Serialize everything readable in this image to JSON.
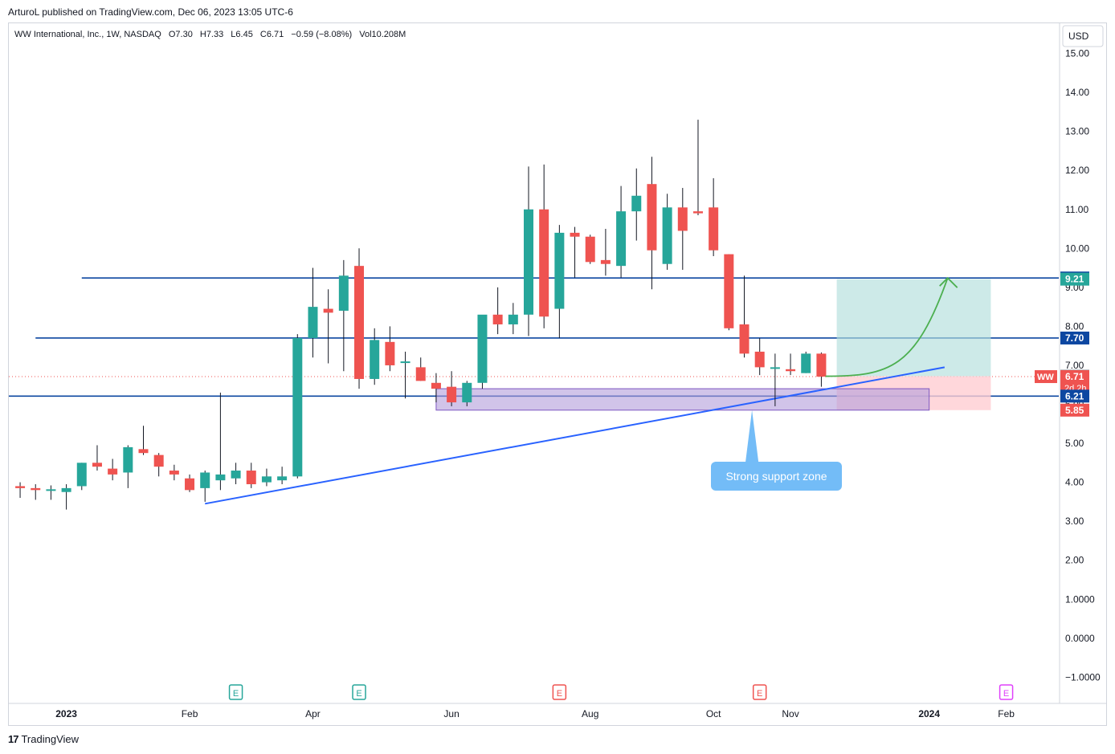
{
  "publisher_line": "ArturoL published on TradingView.com, Dec 06, 2023 13:05 UTC-6",
  "legend": {
    "symbol": "WW International, Inc., 1W, NASDAQ",
    "open": "O7.30",
    "high": "H7.33",
    "low": "L6.45",
    "close": "C6.71",
    "change": "−0.59 (−8.08%)",
    "volume": "Vol10.208M"
  },
  "currency_button": "USD",
  "footer_brand": "TradingView",
  "annotation_text": "Strong support zone",
  "colors": {
    "up": "#26a69a",
    "down": "#ef5350",
    "hline": "#0d47a1",
    "trendline": "#2962ff",
    "zone_fill": "#b39ddb",
    "zone_stroke": "#7e57c2",
    "target_fill": "#b2dfdb",
    "stop_fill": "#ffcdd2",
    "callout": "#64b5f6",
    "arrow": "#4caf50",
    "earnings_green": "#26a69a",
    "earnings_red": "#ef5350",
    "earnings_magenta": "#e040fb"
  },
  "chart_data": {
    "type": "candlestick",
    "timeframe": "1W",
    "symbol": "WW",
    "ylim": [
      -1.3,
      15.6
    ],
    "y_ticks": [
      "15.00",
      "14.00",
      "13.00",
      "12.00",
      "11.00",
      "10.00",
      "9.00",
      "8.00",
      "7.00",
      "6.00",
      "5.00",
      "4.00",
      "3.00",
      "2.00",
      "1.0000",
      "0.0000",
      "−1.0000"
    ],
    "y_tick_values": [
      15,
      14,
      13,
      12,
      11,
      10,
      9,
      8,
      7,
      6,
      5,
      4,
      3,
      2,
      1,
      0,
      -1
    ],
    "x_ticks": [
      {
        "label": "2023",
        "week": 1
      },
      {
        "label": "Feb",
        "week": 9
      },
      {
        "label": "Apr",
        "week": 17
      },
      {
        "label": "Jun",
        "week": 26
      },
      {
        "label": "Aug",
        "week": 35
      },
      {
        "label": "Oct",
        "week": 43
      },
      {
        "label": "Nov",
        "week": 48
      },
      {
        "label": "2024",
        "week": 57
      },
      {
        "label": "Feb",
        "week": 62
      }
    ],
    "candles": [
      {
        "w": -2,
        "o": 3.9,
        "h": 4.0,
        "l": 3.6,
        "c": 3.85
      },
      {
        "w": -1,
        "o": 3.85,
        "h": 3.95,
        "l": 3.55,
        "c": 3.8
      },
      {
        "w": 0,
        "o": 3.8,
        "h": 3.92,
        "l": 3.55,
        "c": 3.82
      },
      {
        "w": 1,
        "o": 3.75,
        "h": 3.95,
        "l": 3.3,
        "c": 3.85
      },
      {
        "w": 2,
        "o": 3.9,
        "h": 4.5,
        "l": 3.8,
        "c": 4.5
      },
      {
        "w": 3,
        "o": 4.5,
        "h": 4.95,
        "l": 4.3,
        "c": 4.4
      },
      {
        "w": 4,
        "o": 4.35,
        "h": 4.6,
        "l": 4.05,
        "c": 4.2
      },
      {
        "w": 5,
        "o": 4.25,
        "h": 4.95,
        "l": 3.85,
        "c": 4.9
      },
      {
        "w": 6,
        "o": 4.85,
        "h": 5.45,
        "l": 4.7,
        "c": 4.75
      },
      {
        "w": 7,
        "o": 4.7,
        "h": 4.75,
        "l": 4.15,
        "c": 4.4
      },
      {
        "w": 8,
        "o": 4.3,
        "h": 4.45,
        "l": 4.05,
        "c": 4.2
      },
      {
        "w": 9,
        "o": 4.1,
        "h": 4.2,
        "l": 3.75,
        "c": 3.8
      },
      {
        "w": 10,
        "o": 3.85,
        "h": 4.3,
        "l": 3.5,
        "c": 4.25
      },
      {
        "w": 11,
        "o": 4.05,
        "h": 6.3,
        "l": 3.8,
        "c": 4.2
      },
      {
        "w": 12,
        "o": 4.1,
        "h": 4.5,
        "l": 3.95,
        "c": 4.3
      },
      {
        "w": 13,
        "o": 4.3,
        "h": 4.5,
        "l": 3.85,
        "c": 3.95
      },
      {
        "w": 14,
        "o": 4.0,
        "h": 4.35,
        "l": 3.9,
        "c": 4.15
      },
      {
        "w": 15,
        "o": 4.05,
        "h": 4.4,
        "l": 3.95,
        "c": 4.15
      },
      {
        "w": 16,
        "o": 4.15,
        "h": 7.8,
        "l": 4.1,
        "c": 7.7
      },
      {
        "w": 17,
        "o": 7.7,
        "h": 9.5,
        "l": 7.2,
        "c": 8.5
      },
      {
        "w": 18,
        "o": 8.45,
        "h": 8.95,
        "l": 7.05,
        "c": 8.35
      },
      {
        "w": 19,
        "o": 8.4,
        "h": 9.7,
        "l": 6.85,
        "c": 9.3
      },
      {
        "w": 20,
        "o": 9.55,
        "h": 10.0,
        "l": 6.4,
        "c": 6.65
      },
      {
        "w": 21,
        "o": 6.65,
        "h": 7.95,
        "l": 6.5,
        "c": 7.65
      },
      {
        "w": 22,
        "o": 7.6,
        "h": 8.0,
        "l": 6.85,
        "c": 7.0
      },
      {
        "w": 23,
        "o": 7.1,
        "h": 7.35,
        "l": 6.15,
        "c": 7.1
      },
      {
        "w": 24,
        "o": 6.95,
        "h": 7.2,
        "l": 6.6,
        "c": 6.6
      },
      {
        "w": 25,
        "o": 6.55,
        "h": 6.8,
        "l": 6.05,
        "c": 6.4
      },
      {
        "w": 26,
        "o": 6.45,
        "h": 6.85,
        "l": 5.95,
        "c": 6.05
      },
      {
        "w": 27,
        "o": 6.05,
        "h": 6.6,
        "l": 5.95,
        "c": 6.55
      },
      {
        "w": 28,
        "o": 6.55,
        "h": 8.25,
        "l": 6.4,
        "c": 8.3
      },
      {
        "w": 29,
        "o": 8.3,
        "h": 9.0,
        "l": 7.8,
        "c": 8.05
      },
      {
        "w": 30,
        "o": 8.05,
        "h": 8.6,
        "l": 7.8,
        "c": 8.3
      },
      {
        "w": 31,
        "o": 8.3,
        "h": 12.1,
        "l": 7.75,
        "c": 11.0
      },
      {
        "w": 32,
        "o": 11.0,
        "h": 12.15,
        "l": 7.95,
        "c": 8.25
      },
      {
        "w": 33,
        "o": 8.45,
        "h": 10.6,
        "l": 7.7,
        "c": 10.4
      },
      {
        "w": 34,
        "o": 10.4,
        "h": 10.55,
        "l": 9.25,
        "c": 10.3
      },
      {
        "w": 35,
        "o": 10.3,
        "h": 10.35,
        "l": 9.6,
        "c": 9.65
      },
      {
        "w": 36,
        "o": 9.7,
        "h": 10.5,
        "l": 9.3,
        "c": 9.6
      },
      {
        "w": 37,
        "o": 9.55,
        "h": 11.6,
        "l": 9.25,
        "c": 10.95
      },
      {
        "w": 38,
        "o": 10.95,
        "h": 12.05,
        "l": 10.2,
        "c": 11.35
      },
      {
        "w": 39,
        "o": 11.65,
        "h": 12.35,
        "l": 8.95,
        "c": 9.95
      },
      {
        "w": 40,
        "o": 9.6,
        "h": 11.4,
        "l": 9.45,
        "c": 11.05
      },
      {
        "w": 41,
        "o": 11.05,
        "h": 11.55,
        "l": 9.45,
        "c": 10.45
      },
      {
        "w": 42,
        "o": 10.95,
        "h": 13.3,
        "l": 10.85,
        "c": 10.9
      },
      {
        "w": 43,
        "o": 11.05,
        "h": 11.8,
        "l": 9.8,
        "c": 9.95
      },
      {
        "w": 44,
        "o": 9.85,
        "h": 9.85,
        "l": 7.9,
        "c": 7.95
      },
      {
        "w": 45,
        "o": 8.05,
        "h": 9.3,
        "l": 7.2,
        "c": 7.3
      },
      {
        "w": 46,
        "o": 7.35,
        "h": 7.7,
        "l": 6.75,
        "c": 6.95
      },
      {
        "w": 47,
        "o": 6.95,
        "h": 7.3,
        "l": 5.95,
        "c": 6.95
      },
      {
        "w": 48,
        "o": 6.9,
        "h": 7.3,
        "l": 6.75,
        "c": 6.85
      },
      {
        "w": 49,
        "o": 6.8,
        "h": 7.35,
        "l": 6.8,
        "c": 7.3
      },
      {
        "w": 50,
        "o": 7.3,
        "h": 7.33,
        "l": 6.45,
        "c": 6.71
      }
    ],
    "horizontal_lines": [
      {
        "value": 9.24,
        "label": "9.24"
      },
      {
        "value": 7.7,
        "label": "7.70"
      },
      {
        "value": 6.21,
        "label": "6.21"
      }
    ],
    "trendline": {
      "from": {
        "w": 10,
        "y": 3.45
      },
      "to": {
        "w": 58,
        "y": 6.95
      }
    },
    "support_zone": {
      "from_w": 25,
      "to_w": 57,
      "y_low": 5.85,
      "y_high": 6.4
    },
    "position": {
      "from_w": 51,
      "to_w": 61,
      "entry": 6.72,
      "target": 9.21,
      "stop": 5.85
    },
    "price_labels": [
      {
        "value": 9.24,
        "label": "9.24",
        "color": "#0d47a1"
      },
      {
        "value": 9.21,
        "label": "9.21",
        "color": "#26a69a"
      },
      {
        "value": 7.7,
        "label": "7.70",
        "color": "#0d47a1"
      },
      {
        "value": 6.72,
        "label": "6.72",
        "color": "#787b86"
      },
      {
        "value": 6.71,
        "label": "6.71",
        "sub": "2d 2h",
        "color": "#ef5350"
      },
      {
        "value": 6.21,
        "label": "6.21",
        "color": "#0d47a1"
      },
      {
        "value": 5.85,
        "label": "5.85",
        "color": "#ef5350"
      }
    ],
    "last_price": 6.71,
    "symbol_tag": "WW",
    "earnings_markers": [
      {
        "w": 12,
        "type": "E",
        "color": "green"
      },
      {
        "w": 20,
        "type": "E",
        "color": "green"
      },
      {
        "w": 33,
        "type": "E",
        "color": "red"
      },
      {
        "w": 46,
        "type": "E",
        "color": "red"
      },
      {
        "w": 62,
        "type": "E",
        "color": "magenta"
      }
    ]
  }
}
